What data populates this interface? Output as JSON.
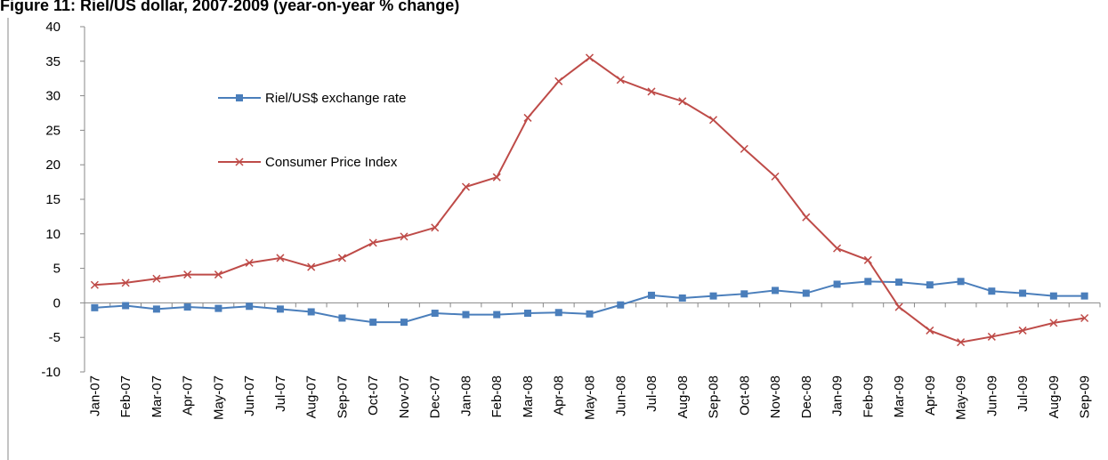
{
  "chart_data": {
    "type": "line",
    "title": "Figure 11: Riel/US dollar, 2007-2009 (year-on-year % change)",
    "categories": [
      "Jan-07",
      "Feb-07",
      "Mar-07",
      "Apr-07",
      "May-07",
      "Jun-07",
      "Jul-07",
      "Aug-07",
      "Sep-07",
      "Oct-07",
      "Nov-07",
      "Dec-07",
      "Jan-08",
      "Feb-08",
      "Mar-08",
      "Apr-08",
      "May-08",
      "Jun-08",
      "Jul-08",
      "Aug-08",
      "Sep-08",
      "Oct-08",
      "Nov-08",
      "Dec-08",
      "Jan-09",
      "Feb-09",
      "Mar-09",
      "Apr-09",
      "May-09",
      "Jun-09",
      "Jul-09",
      "Aug-09",
      "Sep-09"
    ],
    "series": [
      {
        "name": "Riel/US$ exchange rate",
        "color": "#4a7ebb",
        "marker": "square",
        "values": [
          -0.7,
          -0.4,
          -0.9,
          -0.6,
          -0.8,
          -0.5,
          -0.9,
          -1.3,
          -2.2,
          -2.8,
          -2.8,
          -1.5,
          -1.7,
          -1.7,
          -1.5,
          -1.4,
          -1.6,
          -0.3,
          1.1,
          0.7,
          1.0,
          1.3,
          1.8,
          1.4,
          2.7,
          3.1,
          3.0,
          2.6,
          3.1,
          1.7,
          1.4,
          1.0,
          1.0
        ]
      },
      {
        "name": "Consumer Price Index",
        "color": "#be4b48",
        "marker": "x",
        "values": [
          2.6,
          2.9,
          3.5,
          4.1,
          4.1,
          5.8,
          6.5,
          5.2,
          6.5,
          8.7,
          9.6,
          10.9,
          16.8,
          18.2,
          26.8,
          32.1,
          35.5,
          32.3,
          30.6,
          29.2,
          26.5,
          22.3,
          18.3,
          12.4,
          7.9,
          6.2,
          -0.6,
          -4.0,
          -5.7,
          -4.9,
          -4.0,
          -2.9,
          -2.2
        ]
      }
    ],
    "ylim": [
      -10,
      40
    ],
    "yticks": [
      -10,
      -5,
      0,
      5,
      10,
      15,
      20,
      25,
      30,
      35,
      40
    ]
  }
}
